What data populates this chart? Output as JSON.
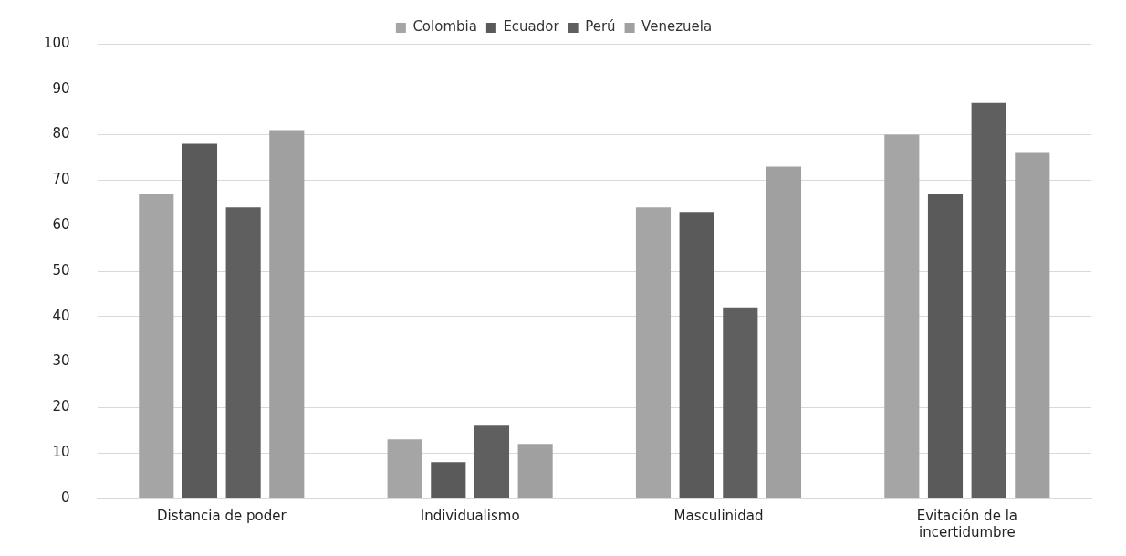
{
  "chart_data": {
    "type": "bar",
    "categories": [
      "Distancia de poder",
      "Individualismo",
      "Masculinidad",
      "Evitación de la incertidumbre"
    ],
    "series": [
      {
        "name": "Colombia",
        "color": "#a5a5a5",
        "values": [
          67,
          13,
          64,
          80
        ]
      },
      {
        "name": "Ecuador",
        "color": "#5a5a5a",
        "values": [
          78,
          8,
          63,
          67
        ]
      },
      {
        "name": "Perú",
        "color": "#5f5f5f",
        "values": [
          64,
          16,
          42,
          87
        ]
      },
      {
        "name": "Venezuela",
        "color": "#a0a0a0",
        "values": [
          81,
          12,
          73,
          76
        ]
      }
    ],
    "ylim": [
      0,
      100
    ],
    "yticks": [
      0,
      10,
      20,
      30,
      40,
      50,
      60,
      70,
      80,
      90,
      100
    ],
    "grid": "y",
    "legend": "top"
  }
}
